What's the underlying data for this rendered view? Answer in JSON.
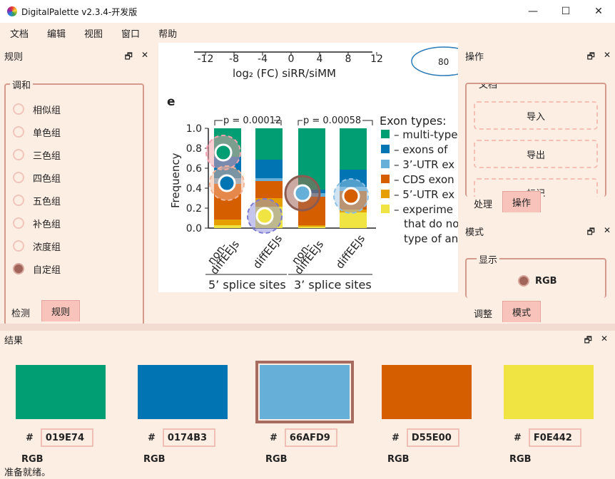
{
  "window": {
    "title": "DigitalPalette v2.3.4-开发版",
    "minimize_glyph": "—",
    "maximize_glyph": "☐",
    "close_glyph": "✕"
  },
  "menu": [
    "文档",
    "编辑",
    "视图",
    "窗口",
    "帮助"
  ],
  "rules_panel": {
    "title": "规则",
    "group_title": "调和",
    "options": [
      {
        "label": "相似组",
        "checked": false
      },
      {
        "label": "单色组",
        "checked": false
      },
      {
        "label": "三色组",
        "checked": false
      },
      {
        "label": "四色组",
        "checked": false
      },
      {
        "label": "五色组",
        "checked": false
      },
      {
        "label": "补色组",
        "checked": false
      },
      {
        "label": "浓度组",
        "checked": false
      },
      {
        "label": "自定组",
        "checked": true
      }
    ],
    "tabs": [
      "检测",
      "规则"
    ]
  },
  "operation_panel": {
    "title": "操作",
    "group_title": "文档",
    "buttons": [
      "导入",
      "导出",
      "标记"
    ],
    "tabs": [
      "处理",
      "操作"
    ]
  },
  "mode_panel": {
    "title": "模式",
    "group_title": "显示",
    "selected_mode": "RGB",
    "tabs": [
      "调整",
      "模式"
    ]
  },
  "result_panel": {
    "title": "结果",
    "swatches": [
      {
        "hex": "019E74",
        "color": "#019E74",
        "label": "RGB"
      },
      {
        "hex": "0174B3",
        "color": "#0174B3",
        "label": "RGB"
      },
      {
        "hex": "66AFD9",
        "color": "#66AFD9",
        "label": "RGB"
      },
      {
        "hex": "D55E00",
        "color": "#D55E00",
        "label": "RGB"
      },
      {
        "hex": "F0E442",
        "color": "#F0E442",
        "label": "RGB"
      }
    ]
  },
  "status": "准备就绪。",
  "figure": {
    "top_axis_ticks": [
      "-12",
      "-8",
      "-4",
      "0",
      "4",
      "8",
      "12"
    ],
    "top_axis_label": "log₂ (FC) siRR/siMM",
    "ellipse_value": "80",
    "panel_letter": "e",
    "p_values": [
      "p = 0.00012",
      "p = 0.00058"
    ],
    "y_label": "Frequency",
    "y_ticks": [
      "1.0",
      "0.8",
      "0.6",
      "0.4",
      "0.2",
      "0.0"
    ],
    "x_ticks": [
      "non-\ndiffEEJs",
      "diffEEJs",
      "non-\ndiffEEJs",
      "diffEEJs"
    ],
    "group_labels": [
      "5’ splice sites",
      "3’ splice sites"
    ],
    "legend_title": "Exon types:",
    "legend_items": [
      {
        "label": "– multi-type",
        "color": "#019E74"
      },
      {
        "label": "– exons of",
        "color": "#0174B3"
      },
      {
        "label": "– 3’-UTR ex",
        "color": "#66AFD9"
      },
      {
        "label": "– CDS exon",
        "color": "#D55E00"
      },
      {
        "label": "– 5’-UTR ex",
        "color": "#E69F00"
      },
      {
        "label": "– experime",
        "color": "#F0E442"
      }
    ],
    "legend_extra": [
      "that do no",
      "type of an"
    ]
  }
}
